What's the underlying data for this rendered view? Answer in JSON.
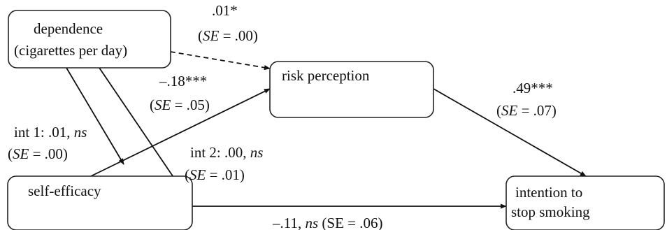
{
  "nodes": {
    "dependence": {
      "line1": "dependence",
      "line2": "(cigarettes per day)"
    },
    "risk_perception": {
      "label": "risk perception"
    },
    "self_efficacy": {
      "label": "self-efficacy"
    },
    "intention": {
      "line1": "intention to",
      "line2": "stop smoking"
    }
  },
  "paths": {
    "dep_to_risk": {
      "coef": ".01*",
      "se_label": "SE",
      "se_value": " = .00)"
    },
    "self_to_risk": {
      "coef": "–.18***",
      "se_label": "SE",
      "se_value": " = .05)"
    },
    "risk_to_intention": {
      "coef": ".49***",
      "se_label": "SE",
      "se_value": " = .07)"
    },
    "int1": {
      "coef": "int 1: .01, ",
      "ns": "ns",
      "se_label": "SE",
      "se_value": " = .00)"
    },
    "int2": {
      "coef": "int 2: .00, ",
      "ns": "ns",
      "se_label": "SE",
      "se_value": " = .01)"
    },
    "self_to_intention": {
      "coef": "–.11, ",
      "ns": "ns",
      "se": " (SE = .06)"
    }
  },
  "colors": {
    "stroke": "#111111",
    "box_border": "#222222",
    "background": "#ffffff"
  }
}
